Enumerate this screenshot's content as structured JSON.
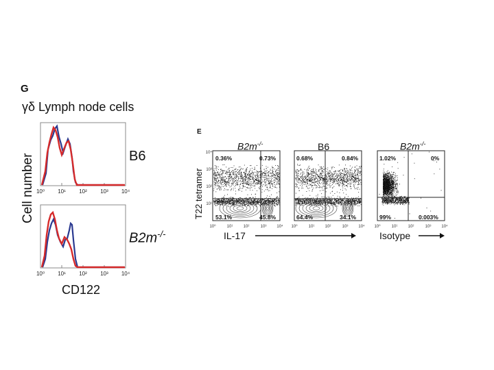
{
  "panel_g": {
    "letter": "G",
    "title": "γδ Lymph node cells",
    "y_axis_label": "Cell number",
    "x_axis_label": "CD122",
    "tick_labels": [
      "10⁰",
      "10¹",
      "10²",
      "10³",
      "10⁴"
    ],
    "rows": [
      {
        "label": "B6",
        "italic": false
      },
      {
        "label_main": "B2m",
        "label_sup": "-/-",
        "italic": true
      }
    ],
    "colors": {
      "series_a": "#2a3990",
      "series_b": "#d62a2a"
    }
  },
  "panel_e": {
    "letter": "E",
    "y_axis_label": "T22 tetramer",
    "x_label_left": "IL-17",
    "x_label_right": "Isotype",
    "tick_labels": [
      "10⁰",
      "10¹",
      "10²",
      "10³",
      "10⁴"
    ],
    "plots": [
      {
        "header_main": "B2m",
        "header_sup": "-/-",
        "header_italic": true,
        "quadrants": {
          "ul": "0.36%",
          "ur": "0.73%",
          "ll": "53.1%",
          "lr": "45.8%"
        }
      },
      {
        "header_main": "B6",
        "header_sup": "",
        "header_italic": false,
        "quadrants": {
          "ul": "0.68%",
          "ur": "0.84%",
          "ll": "64.4%",
          "lr": "34.1%"
        }
      },
      {
        "header_main": "B2m",
        "header_sup": "-/-",
        "header_italic": true,
        "quadrants": {
          "ul": "1.02%",
          "ur": "0%",
          "ll": "99%",
          "lr": "0.003%"
        }
      }
    ]
  }
}
